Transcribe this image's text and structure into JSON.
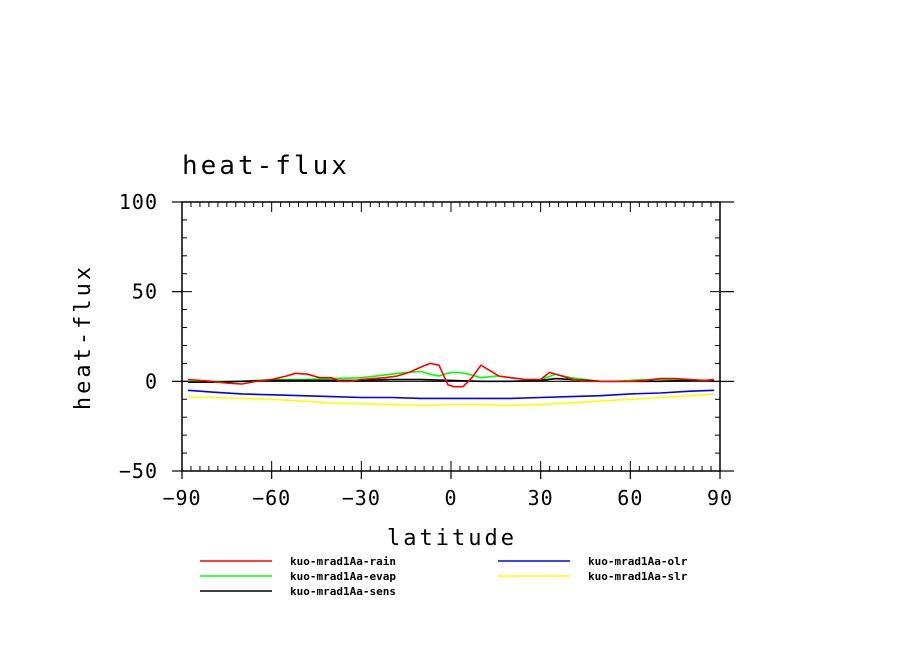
{
  "chart_data": {
    "type": "line",
    "title": "heat-flux",
    "xlabel": "latitude",
    "ylabel": "heat-flux",
    "xlim": [
      -90,
      90
    ],
    "ylim": [
      -50,
      100
    ],
    "xticks": [
      -90,
      -60,
      -30,
      0,
      30,
      60,
      90
    ],
    "yticks": [
      -50,
      0,
      50,
      100
    ],
    "xtick_labels": [
      "−90",
      "−60",
      "−30",
      "0",
      "30",
      "60",
      "90"
    ],
    "ytick_labels": [
      "−50",
      "0",
      "50",
      "100"
    ],
    "grid": false,
    "legend_position": "bottom",
    "series": [
      {
        "name": "kuo-mrad1Aa-rain",
        "color": "#ff0000",
        "x": [
          -88,
          -80,
          -75,
          -70,
          -65,
          -60,
          -55,
          -52,
          -48,
          -44,
          -40,
          -37,
          -34,
          -30,
          -26,
          -22,
          -18,
          -14,
          -10,
          -7,
          -4,
          -1,
          1,
          4,
          7,
          10,
          13,
          16,
          20,
          25,
          30,
          33,
          37,
          41,
          45,
          50,
          55,
          60,
          65,
          70,
          75,
          80,
          85,
          88
        ],
        "y": [
          1,
          0,
          -1,
          -1.5,
          0,
          1,
          3,
          4.5,
          4,
          2,
          2,
          0,
          0,
          1,
          1.5,
          2,
          3,
          5,
          8,
          10,
          9,
          -2,
          -3,
          -3,
          2,
          9,
          6,
          3,
          2,
          1,
          1,
          5,
          3,
          1,
          0,
          0,
          0,
          0,
          0.5,
          1.5,
          1.5,
          1,
          0.5,
          1
        ]
      },
      {
        "name": "kuo-mrad1Aa-evap",
        "color": "#00ff00",
        "x": [
          -88,
          -80,
          -70,
          -60,
          -50,
          -40,
          -30,
          -25,
          -20,
          -15,
          -10,
          -7,
          -4,
          0,
          3,
          6,
          10,
          15,
          20,
          25,
          30,
          35,
          40,
          45,
          50,
          55,
          60,
          65,
          70,
          75,
          80,
          85,
          88
        ],
        "y": [
          0,
          0,
          0,
          1,
          1,
          1.5,
          2,
          3,
          4,
          5,
          5.5,
          4,
          3,
          5,
          5,
          4,
          2,
          3,
          2,
          1,
          1,
          4,
          2,
          1,
          0,
          0,
          0.5,
          1,
          1,
          1,
          0.5,
          0.5,
          0.5
        ]
      },
      {
        "name": "kuo-mrad1Aa-olr",
        "color": "#0000ff",
        "x": [
          -88,
          -80,
          -70,
          -60,
          -50,
          -40,
          -30,
          -20,
          -10,
          0,
          10,
          20,
          30,
          40,
          50,
          60,
          70,
          80,
          88
        ],
        "y": [
          -5,
          -6,
          -7,
          -7.5,
          -8,
          -8.5,
          -9,
          -9,
          -9.5,
          -9.5,
          -9.5,
          -9.5,
          -9,
          -8.5,
          -8,
          -7,
          -6.5,
          -5.5,
          -5
        ]
      },
      {
        "name": "kuo-mrad1Aa-slr",
        "color": "#ffff00",
        "x": [
          -88,
          -80,
          -70,
          -60,
          -50,
          -40,
          -30,
          -20,
          -10,
          0,
          10,
          20,
          30,
          40,
          50,
          60,
          70,
          80,
          88
        ],
        "y": [
          -9,
          -9,
          -9.5,
          -10,
          -11,
          -12,
          -12.5,
          -13,
          -13.5,
          -13,
          -13,
          -13.5,
          -13,
          -12,
          -11,
          -10,
          -9,
          -8,
          -7
        ]
      },
      {
        "name": "kuo-mrad1Aa-sens",
        "color": "#000000",
        "x": [
          -88,
          -80,
          -70,
          -60,
          -50,
          -40,
          -30,
          -20,
          -10,
          0,
          10,
          20,
          30,
          35,
          40,
          50,
          60,
          70,
          80,
          88
        ],
        "y": [
          -0.5,
          -0.5,
          0,
          0.5,
          0.5,
          0.5,
          0.5,
          1,
          1,
          0.5,
          0,
          0,
          0.5,
          1.5,
          1,
          0,
          0,
          0,
          0.5,
          0.5
        ]
      }
    ],
    "legend": [
      {
        "series": 0,
        "column": 0,
        "row": 0
      },
      {
        "series": 2,
        "column": 1,
        "row": 0
      },
      {
        "series": 1,
        "column": 0,
        "row": 1
      },
      {
        "series": 3,
        "column": 1,
        "row": 1
      },
      {
        "series": 4,
        "column": 0,
        "row": 2
      }
    ]
  }
}
